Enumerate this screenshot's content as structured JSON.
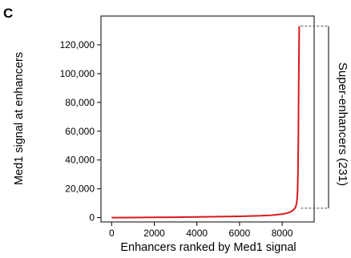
{
  "panel_label": "C",
  "chart_data": {
    "type": "line",
    "title": "",
    "xlabel": "Enhancers ranked by Med1 signal",
    "ylabel": "Med1 signal at enhancers",
    "xlim": [
      -500,
      9500
    ],
    "ylim": [
      -3000,
      140000
    ],
    "xticks": [
      0,
      2000,
      4000,
      6000,
      8000
    ],
    "xtick_labels": [
      "0",
      "2000",
      "4000",
      "6000",
      "8000"
    ],
    "yticks": [
      0,
      20000,
      40000,
      60000,
      80000,
      100000,
      120000
    ],
    "ytick_labels": [
      "0",
      "20,000",
      "40,000",
      "60,000",
      "80,000",
      "100,000",
      "120,000"
    ],
    "grid": false,
    "series": [
      {
        "color": "#d7191c",
        "x": [
          0,
          1000,
          2000,
          3000,
          4000,
          5000,
          6000,
          7000,
          7500,
          8000,
          8200,
          8400,
          8500,
          8550,
          8600,
          8640,
          8680,
          8700,
          8720,
          8740,
          8760,
          8780,
          8800
        ],
        "y": [
          0,
          50,
          150,
          300,
          450,
          650,
          900,
          1300,
          1700,
          2400,
          3000,
          4000,
          5000,
          5800,
          6500,
          7800,
          10000,
          13000,
          18000,
          30000,
          55000,
          95000,
          133000
        ]
      }
    ],
    "annotation": {
      "label": "Super-enhancers (231)",
      "y_range": [
        6500,
        133000
      ],
      "x_start": 8800
    }
  }
}
